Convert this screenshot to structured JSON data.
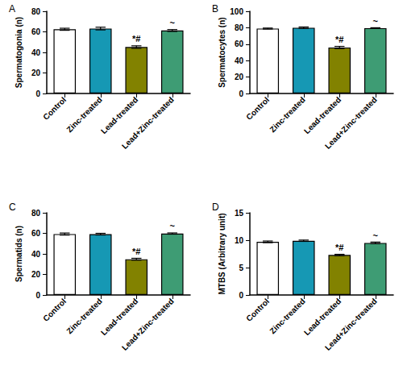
{
  "chart_data": [
    {
      "type": "bar",
      "title": "A",
      "y_label": "Spermatogonia (n)",
      "categories": [
        "Control",
        "Zinc-treated",
        "Lead-treated",
        "Lead+Zinc-treated"
      ],
      "values": [
        62.5,
        63.2,
        45.2,
        61.3
      ],
      "errors": [
        1.0,
        1.3,
        1.2,
        0.9
      ],
      "colors": [
        "#ffffff",
        "#1698b4",
        "#828200",
        "#3e9c74"
      ],
      "annotations": [
        {
          "category": "Lead-treated",
          "text": "*#"
        },
        {
          "category": "Lead+Zinc-treated",
          "text": "~"
        }
      ],
      "ylim": [
        0,
        80
      ],
      "yticks": [
        0,
        20,
        40,
        60,
        80
      ]
    },
    {
      "type": "bar",
      "title": "B",
      "y_label": "Spermatocytes (n)",
      "categories": [
        "Control",
        "Zinc-treated",
        "Lead-treated",
        "Lead+Zinc-treated"
      ],
      "values": [
        79.0,
        80.0,
        56.0,
        79.5
      ],
      "errors": [
        0.6,
        0.9,
        1.3,
        0.5
      ],
      "colors": [
        "#ffffff",
        "#1698b4",
        "#828200",
        "#3e9c74"
      ],
      "annotations": [
        {
          "category": "Lead-treated",
          "text": "*#"
        },
        {
          "category": "Lead+Zinc-treated",
          "text": "~"
        }
      ],
      "ylim": [
        0,
        100
      ],
      "yticks": [
        0,
        20,
        40,
        60,
        80,
        100
      ]
    },
    {
      "type": "bar",
      "title": "C",
      "y_label": "Spermatids (n)",
      "categories": [
        "Control",
        "Zinc-treated",
        "Lead-treated",
        "Lead+Zinc-treated"
      ],
      "values": [
        59.3,
        59.2,
        34.8,
        59.8
      ],
      "errors": [
        1.0,
        0.8,
        0.9,
        0.6
      ],
      "colors": [
        "#ffffff",
        "#1698b4",
        "#828200",
        "#3e9c74"
      ],
      "annotations": [
        {
          "category": "Lead-treated",
          "text": "*#"
        },
        {
          "category": "Lead+Zinc-treated",
          "text": "~"
        }
      ],
      "ylim": [
        0,
        80
      ],
      "yticks": [
        0,
        20,
        40,
        60,
        80
      ]
    },
    {
      "type": "bar",
      "title": "D",
      "y_label": "MTBS (Arbitrary unit)",
      "categories": [
        "Control",
        "Zinc-treated",
        "Lead-treated",
        "Lead+Zinc-treated"
      ],
      "values": [
        9.7,
        9.9,
        7.3,
        9.5
      ],
      "errors": [
        0.15,
        0.12,
        0.12,
        0.15
      ],
      "colors": [
        "#ffffff",
        "#1698b4",
        "#828200",
        "#3e9c74"
      ],
      "annotations": [
        {
          "category": "Lead-treated",
          "text": "*#"
        },
        {
          "category": "Lead+Zinc-treated",
          "text": "~"
        }
      ],
      "ylim": [
        0,
        15
      ],
      "yticks": [
        0,
        5,
        10,
        15
      ]
    }
  ]
}
